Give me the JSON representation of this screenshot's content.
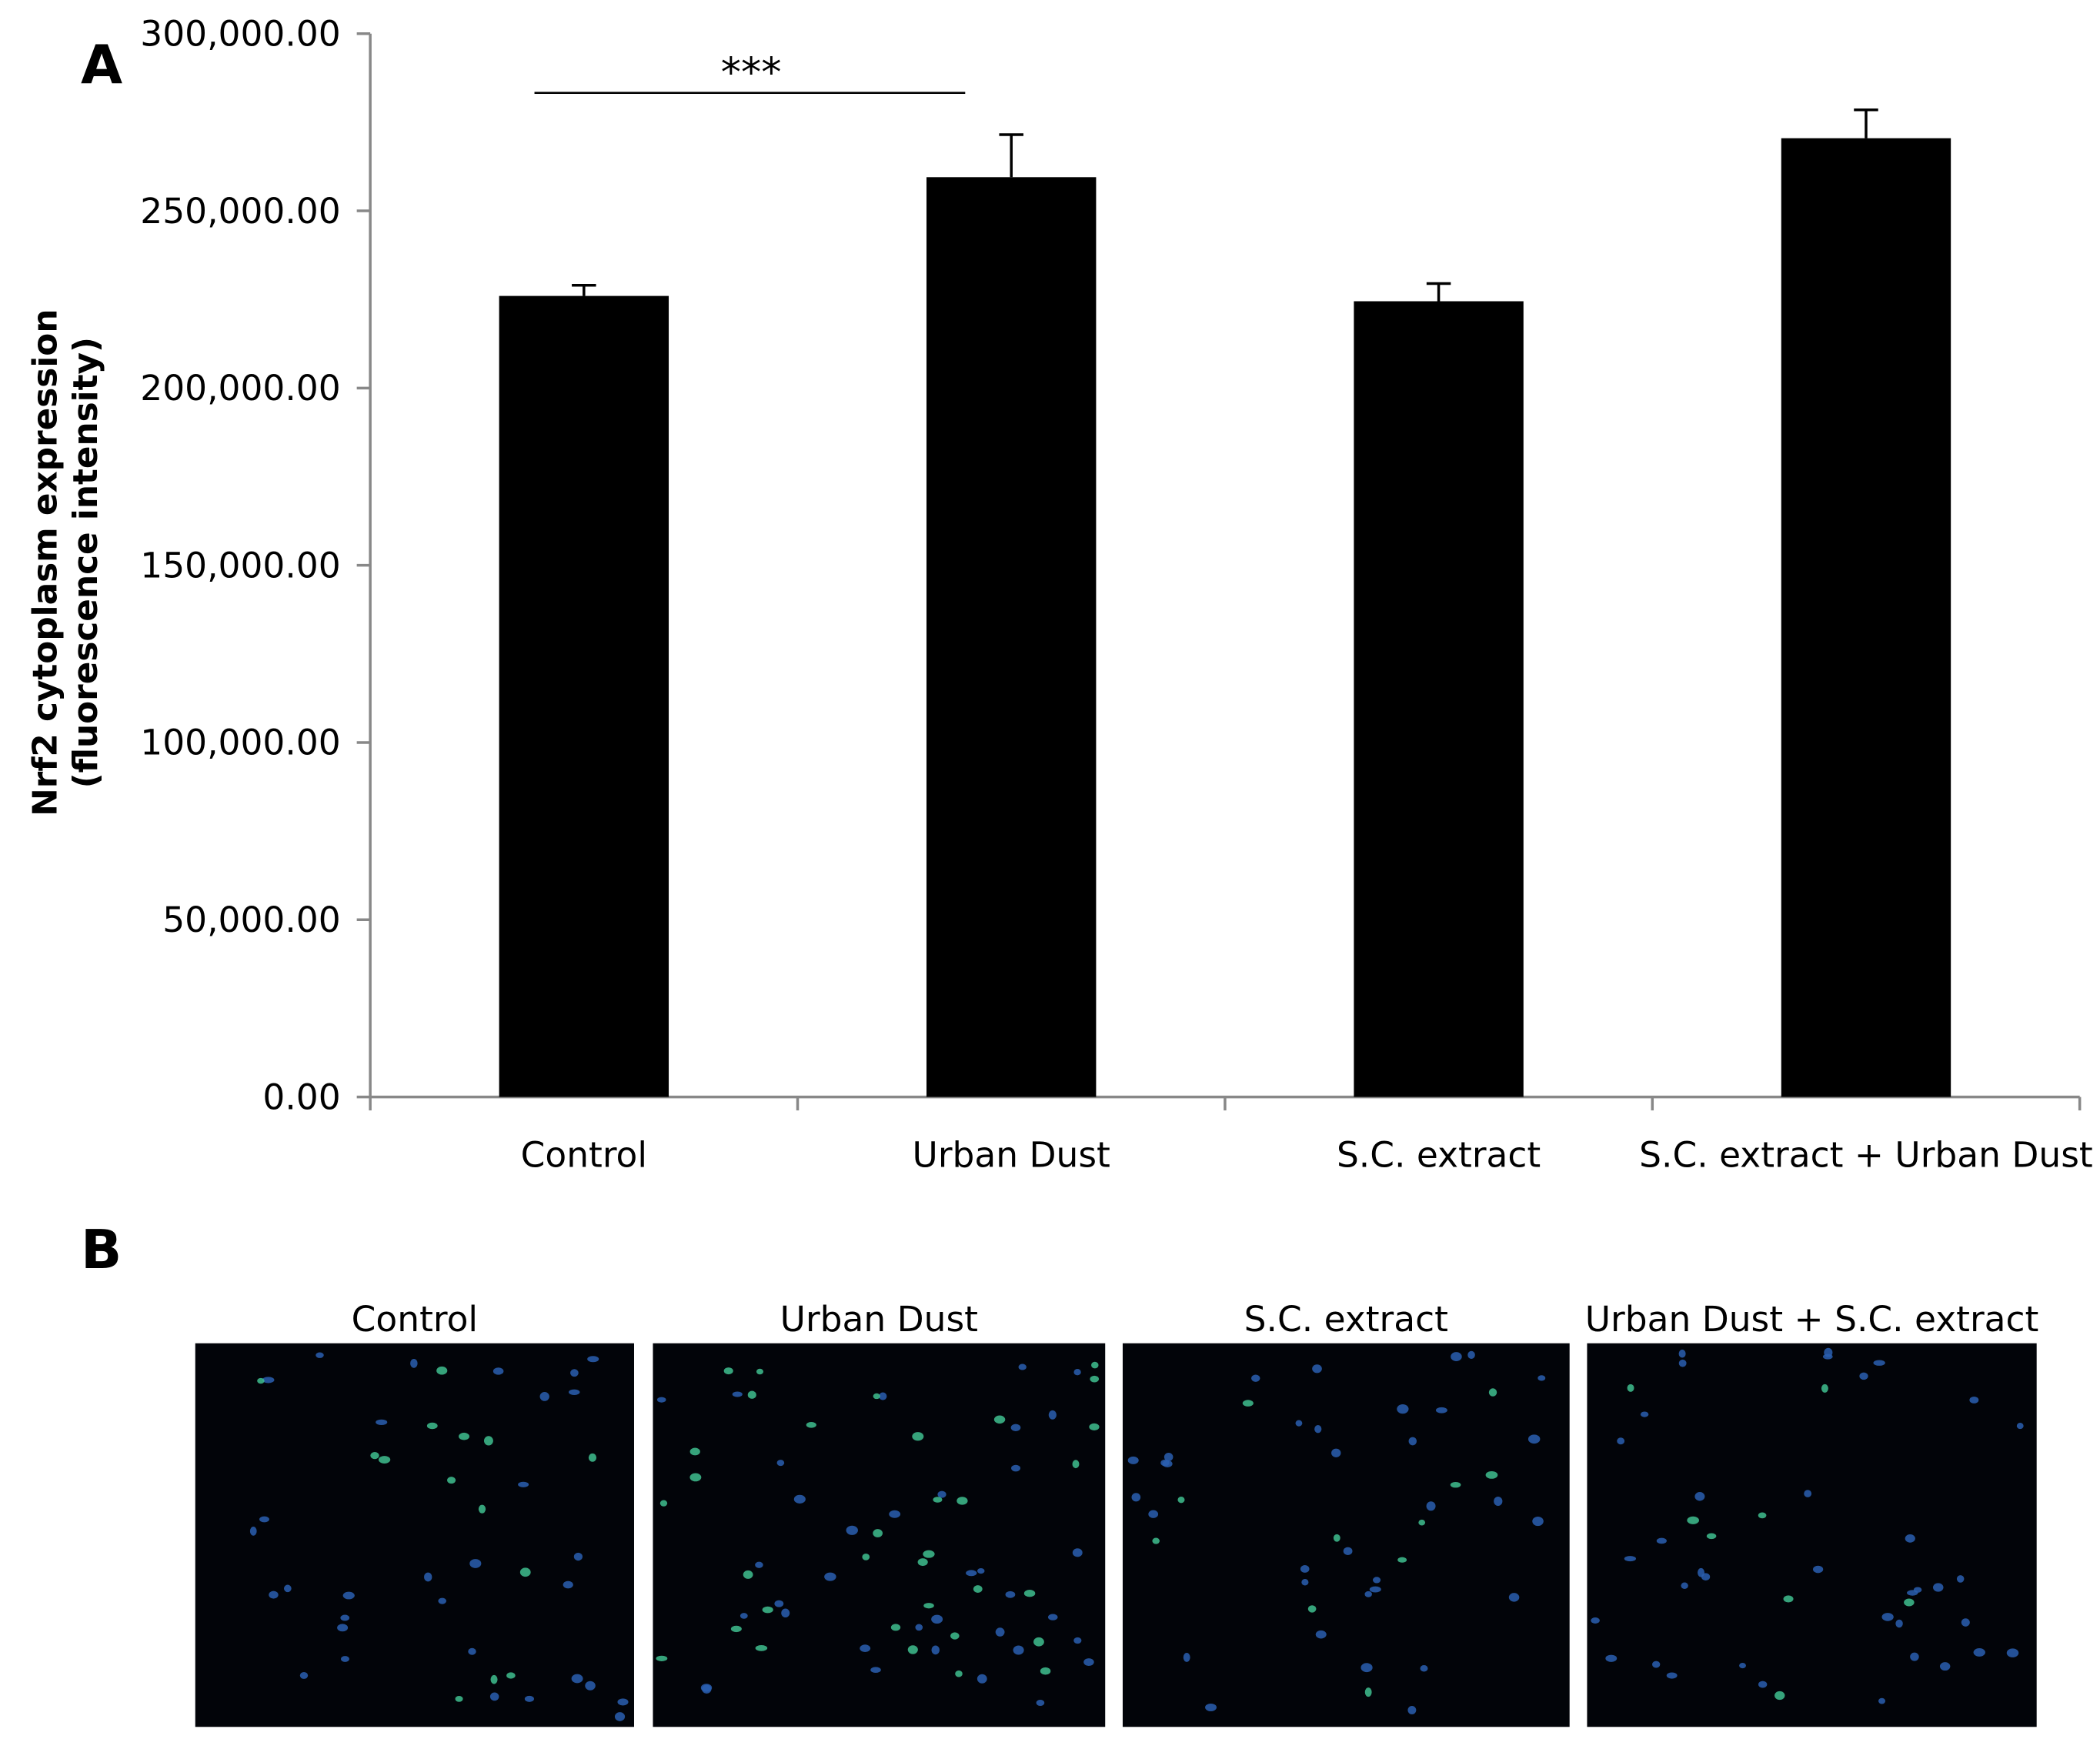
{
  "chart_data": {
    "type": "bar",
    "panel_label": "A",
    "ylabel": [
      "Nrf2 cytoplasm expression",
      "(fluorescence intensity)"
    ],
    "categories": [
      "Control",
      "Urban Dust",
      "S.C. extract",
      "S.C. extract + Urban Dust"
    ],
    "values": [
      226000,
      259500,
      224500,
      270500
    ],
    "errors": [
      3000,
      12000,
      5000,
      8000
    ],
    "color": "#000000",
    "ylim": [
      0,
      300000
    ],
    "yticks": [
      {
        "value": 0,
        "label": "0.00"
      },
      {
        "value": 50000,
        "label": "50,000.00"
      },
      {
        "value": 100000,
        "label": "100,000.00"
      },
      {
        "value": 150000,
        "label": "150,000.00"
      },
      {
        "value": 200000,
        "label": "200,000.00"
      },
      {
        "value": 250000,
        "label": "250,000.00"
      },
      {
        "value": 300000,
        "label": "300,000.00"
      }
    ],
    "annotation": "***"
  },
  "panel_b": {
    "label": "B",
    "images": [
      {
        "title": "Control"
      },
      {
        "title": "Urban Dust"
      },
      {
        "title": "S.C. extract"
      },
      {
        "title": "Urban Dust + S.C. extract"
      }
    ]
  }
}
